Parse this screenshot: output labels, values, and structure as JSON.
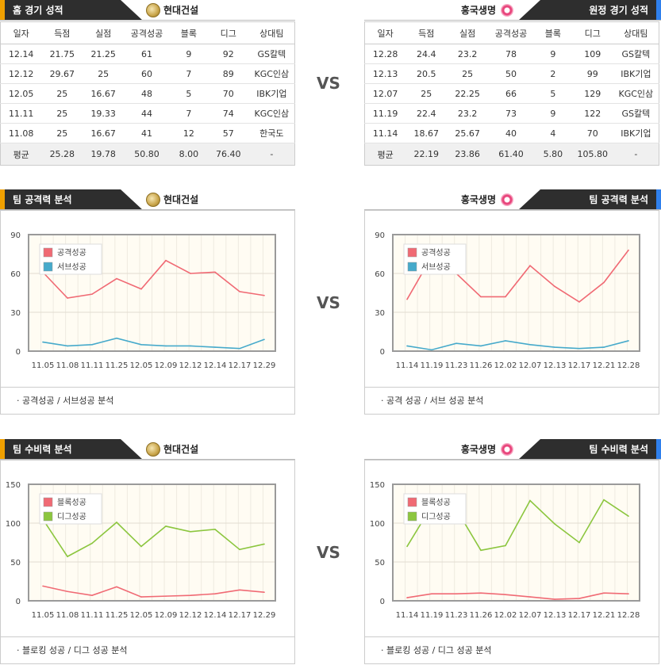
{
  "vs_label": "VS",
  "home": {
    "header_label": "홈 경기 성적",
    "team_name": "현대건설",
    "columns": [
      "일자",
      "득점",
      "실점",
      "공격성공",
      "블록",
      "디그",
      "상대팀"
    ],
    "rows": [
      [
        "12.14",
        "21.75",
        "21.25",
        "61",
        "9",
        "92",
        "GS칼텍"
      ],
      [
        "12.12",
        "29.67",
        "25",
        "60",
        "7",
        "89",
        "KGC인삼"
      ],
      [
        "12.05",
        "25",
        "16.67",
        "48",
        "5",
        "70",
        "IBK기업"
      ],
      [
        "11.11",
        "25",
        "19.33",
        "44",
        "7",
        "74",
        "KGC인삼"
      ],
      [
        "11.08",
        "25",
        "16.67",
        "41",
        "12",
        "57",
        "한국도"
      ]
    ],
    "avg": [
      "평균",
      "25.28",
      "19.78",
      "50.80",
      "8.00",
      "76.40",
      "-"
    ]
  },
  "away": {
    "header_label": "원정 경기 성적",
    "team_name": "흥국생명",
    "columns": [
      "일자",
      "득점",
      "실점",
      "공격성공",
      "블록",
      "디그",
      "상대팀"
    ],
    "rows": [
      [
        "12.28",
        "24.4",
        "23.2",
        "78",
        "9",
        "109",
        "GS칼텍"
      ],
      [
        "12.13",
        "20.5",
        "25",
        "50",
        "2",
        "99",
        "IBK기업"
      ],
      [
        "12.07",
        "25",
        "22.25",
        "66",
        "5",
        "129",
        "KGC인삼"
      ],
      [
        "11.19",
        "22.4",
        "23.2",
        "73",
        "9",
        "122",
        "GS칼텍"
      ],
      [
        "11.14",
        "18.67",
        "25.67",
        "40",
        "4",
        "70",
        "IBK기업"
      ]
    ],
    "avg": [
      "평균",
      "22.19",
      "23.86",
      "61.40",
      "5.80",
      "105.80",
      "-"
    ]
  },
  "sections": {
    "attack": {
      "header_label": "팀 공격력 분석",
      "left_caption": "· 공격성공 / 서브성공 분석",
      "right_caption": "· 공격 성공 / 서브 성공 분석"
    },
    "defense": {
      "header_label": "팀 수비력 분석",
      "left_caption": "· 블로킹 성공 / 디그 성공 분석",
      "right_caption": "· 블로킹 성공 / 디그 성공 분석"
    }
  },
  "colors": {
    "series_red": "#f06a74",
    "series_blue": "#46aacb",
    "series_green": "#8cc63f",
    "plot_bg": "#fffcf3",
    "accent_orange": "#f0a000",
    "accent_blue": "#2f80ed"
  },
  "chart_data": [
    {
      "id": "attack_left",
      "type": "line",
      "categories": [
        "11.05",
        "11.08",
        "11.11",
        "11.25",
        "12.05",
        "12.09",
        "12.12",
        "12.14",
        "12.17",
        "12.29"
      ],
      "series": [
        {
          "name": "공격성공",
          "color": "#f06a74",
          "values": [
            61,
            41,
            44,
            56,
            48,
            70,
            60,
            61,
            46,
            43
          ]
        },
        {
          "name": "서브성공",
          "color": "#46aacb",
          "values": [
            7,
            4,
            5,
            10,
            5,
            4,
            4,
            3,
            2,
            9
          ]
        }
      ],
      "ylim": [
        0,
        90
      ],
      "yticks": [
        0,
        30,
        60,
        90
      ],
      "grid": true,
      "legend": "top-left"
    },
    {
      "id": "attack_right",
      "type": "line",
      "categories": [
        "11.14",
        "11.19",
        "11.23",
        "11.26",
        "12.02",
        "12.07",
        "12.13",
        "12.17",
        "12.21",
        "12.28"
      ],
      "series": [
        {
          "name": "공격성공",
          "color": "#f06a74",
          "values": [
            40,
            73,
            60,
            42,
            42,
            66,
            50,
            38,
            53,
            78
          ]
        },
        {
          "name": "서브성공",
          "color": "#46aacb",
          "values": [
            4,
            1,
            6,
            4,
            8,
            5,
            3,
            2,
            3,
            8
          ]
        }
      ],
      "ylim": [
        0,
        90
      ],
      "yticks": [
        0,
        30,
        60,
        90
      ],
      "grid": true,
      "legend": "top-left"
    },
    {
      "id": "defense_left",
      "type": "line",
      "categories": [
        "11.05",
        "11.08",
        "11.11",
        "11.25",
        "12.05",
        "12.09",
        "12.12",
        "12.14",
        "12.17",
        "12.29"
      ],
      "series": [
        {
          "name": "블록성공",
          "color": "#f06a74",
          "values": [
            19,
            12,
            7,
            18,
            5,
            6,
            7,
            9,
            14,
            11
          ]
        },
        {
          "name": "디그성공",
          "color": "#8cc63f",
          "values": [
            105,
            57,
            74,
            101,
            70,
            96,
            89,
            92,
            66,
            73
          ]
        }
      ],
      "ylim": [
        0,
        150
      ],
      "yticks": [
        0,
        50,
        100,
        150
      ],
      "grid": true,
      "legend": "top-left"
    },
    {
      "id": "defense_right",
      "type": "line",
      "categories": [
        "11.14",
        "11.19",
        "11.23",
        "11.26",
        "12.02",
        "12.07",
        "12.13",
        "12.17",
        "12.21",
        "12.28"
      ],
      "series": [
        {
          "name": "블록성공",
          "color": "#f06a74",
          "values": [
            4,
            9,
            9,
            10,
            8,
            5,
            2,
            3,
            10,
            9
          ]
        },
        {
          "name": "디그성공",
          "color": "#8cc63f",
          "values": [
            70,
            122,
            118,
            65,
            71,
            129,
            99,
            75,
            130,
            109
          ]
        }
      ],
      "ylim": [
        0,
        150
      ],
      "yticks": [
        0,
        50,
        100,
        150
      ],
      "grid": true,
      "legend": "top-left"
    }
  ]
}
